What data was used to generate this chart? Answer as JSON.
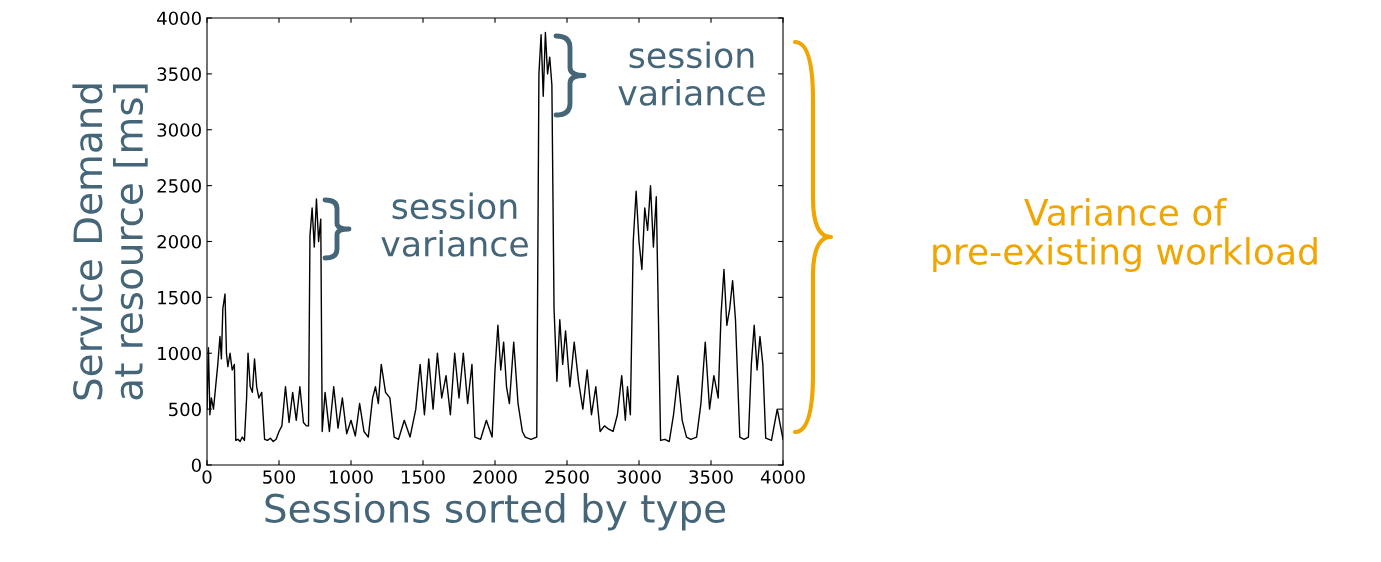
{
  "chart_data": {
    "type": "line",
    "xlabel": "Sessions sorted by type",
    "ylabel": "Service Demand\nat resource [ms]",
    "xlim": [
      0,
      4000
    ],
    "ylim": [
      0,
      4000
    ],
    "xticks": [
      0,
      500,
      1000,
      1500,
      2000,
      2500,
      3000,
      3500,
      4000
    ],
    "yticks": [
      0,
      500,
      1000,
      1500,
      2000,
      2500,
      3000,
      3500,
      4000
    ],
    "grid": false,
    "legend": false,
    "marker": "none",
    "line_style": "solid",
    "series": [
      {
        "color": "#000000",
        "x": [
          0,
          10,
          20,
          30,
          45,
          60,
          75,
          90,
          100,
          110,
          125,
          135,
          145,
          160,
          175,
          190,
          200,
          215,
          230,
          245,
          260,
          275,
          285,
          300,
          315,
          330,
          345,
          360,
          380,
          400,
          420,
          440,
          460,
          480,
          500,
          520,
          545,
          570,
          595,
          620,
          645,
          670,
          690,
          705,
          715,
          730,
          745,
          760,
          775,
          790,
          800,
          820,
          850,
          880,
          910,
          940,
          970,
          1000,
          1030,
          1060,
          1090,
          1120,
          1150,
          1170,
          1190,
          1210,
          1240,
          1270,
          1300,
          1330,
          1370,
          1410,
          1450,
          1480,
          1510,
          1540,
          1570,
          1600,
          1630,
          1660,
          1690,
          1720,
          1750,
          1780,
          1810,
          1840,
          1860,
          1900,
          1940,
          1980,
          2000,
          2020,
          2040,
          2060,
          2080,
          2100,
          2130,
          2160,
          2190,
          2210,
          2250,
          2290,
          2305,
          2320,
          2335,
          2350,
          2365,
          2380,
          2395,
          2410,
          2430,
          2450,
          2470,
          2490,
          2520,
          2550,
          2580,
          2610,
          2640,
          2670,
          2700,
          2730,
          2760,
          2790,
          2820,
          2850,
          2880,
          2905,
          2920,
          2940,
          2960,
          2980,
          3000,
          3020,
          3040,
          3060,
          3080,
          3100,
          3120,
          3150,
          3180,
          3210,
          3240,
          3270,
          3300,
          3330,
          3360,
          3400,
          3430,
          3460,
          3490,
          3520,
          3550,
          3570,
          3590,
          3610,
          3630,
          3650,
          3670,
          3700,
          3730,
          3760,
          3780,
          3800,
          3820,
          3840,
          3860,
          3880,
          3920,
          3960,
          4000
        ],
        "values": [
          500,
          1050,
          450,
          600,
          500,
          700,
          900,
          1150,
          950,
          1400,
          1530,
          1000,
          880,
          1000,
          850,
          900,
          220,
          230,
          210,
          250,
          220,
          600,
          1000,
          700,
          650,
          950,
          700,
          600,
          650,
          230,
          220,
          240,
          210,
          230,
          300,
          350,
          700,
          380,
          650,
          400,
          700,
          380,
          350,
          350,
          2050,
          2300,
          1950,
          2380,
          2000,
          2200,
          300,
          650,
          300,
          700,
          330,
          600,
          280,
          400,
          260,
          550,
          300,
          250,
          600,
          700,
          550,
          900,
          650,
          600,
          250,
          230,
          400,
          250,
          500,
          900,
          450,
          950,
          500,
          1000,
          600,
          800,
          450,
          1000,
          600,
          1000,
          550,
          900,
          250,
          230,
          400,
          250,
          850,
          1250,
          850,
          1100,
          700,
          550,
          1100,
          550,
          300,
          250,
          230,
          250,
          3500,
          3850,
          3300,
          3870,
          3500,
          3650,
          3400,
          1400,
          750,
          1300,
          900,
          1200,
          700,
          1100,
          750,
          500,
          850,
          450,
          700,
          300,
          350,
          320,
          300,
          450,
          800,
          400,
          700,
          450,
          2000,
          2450,
          2000,
          1750,
          2300,
          2100,
          2500,
          1950,
          2400,
          220,
          230,
          210,
          450,
          800,
          400,
          250,
          230,
          250,
          550,
          1100,
          500,
          800,
          600,
          1350,
          1750,
          1250,
          1400,
          1650,
          1300,
          250,
          230,
          250,
          900,
          1250,
          850,
          1150,
          900,
          240,
          220,
          500,
          230
        ]
      }
    ],
    "annotations": [
      "session\nvariance",
      "session\nvariance",
      "Variance of\npre-existing workload"
    ]
  }
}
